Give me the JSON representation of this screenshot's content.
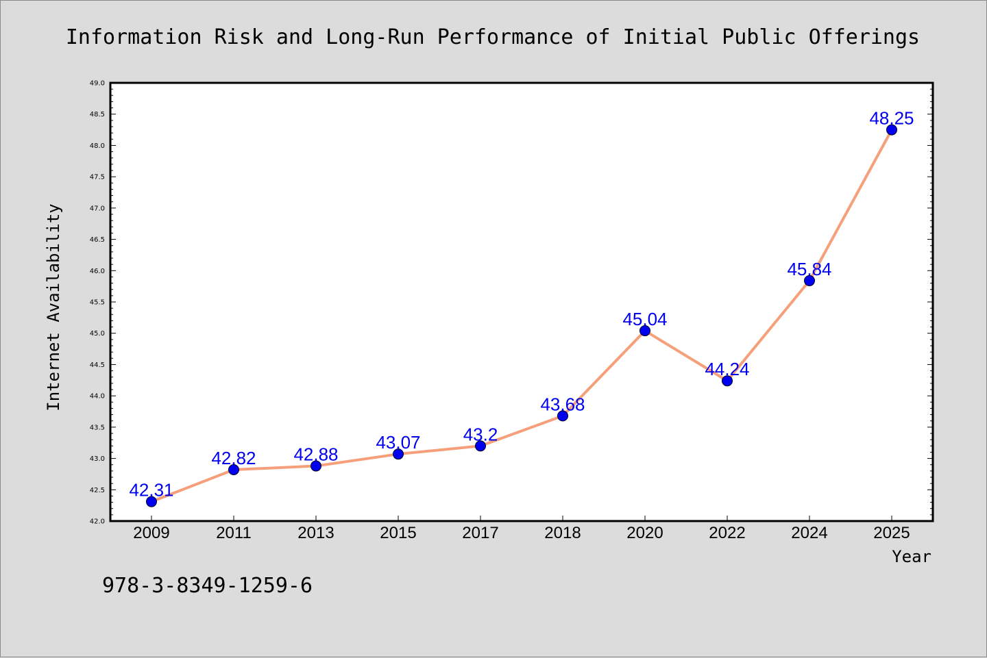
{
  "chart_data": {
    "type": "line",
    "title": "Information Risk and Long-Run Performance of Initial Public Offerings",
    "xlabel": "Year",
    "ylabel": "Internet Availability",
    "categories": [
      "2009",
      "2011",
      "2013",
      "2015",
      "2017",
      "2018",
      "2020",
      "2022",
      "2024",
      "2025"
    ],
    "series": [
      {
        "values": [
          42.31,
          42.82,
          42.88,
          43.07,
          43.2,
          43.68,
          45.04,
          44.24,
          45.84,
          48.25
        ],
        "labels": [
          "42.31",
          "42.82",
          "42.88",
          "43.07",
          "43.2",
          "43.68",
          "45.04",
          "44.24",
          "45.84",
          "48.25"
        ]
      }
    ],
    "ylim": [
      42.0,
      49.0
    ],
    "yticks": [
      "42.0",
      "42.5",
      "43.0",
      "43.5",
      "44.0",
      "44.5",
      "45.0",
      "45.5",
      "46.0",
      "46.5",
      "47.0",
      "47.5",
      "48.0",
      "48.5",
      "49.0"
    ],
    "grid": false,
    "colors": {
      "line": "#f5a07a",
      "marker": "#0000ee",
      "data_label": "#0000ee",
      "background": "#dcdcdc",
      "plot_background": "#ffffff"
    }
  },
  "footer_text": "978-3-8349-1259-6"
}
